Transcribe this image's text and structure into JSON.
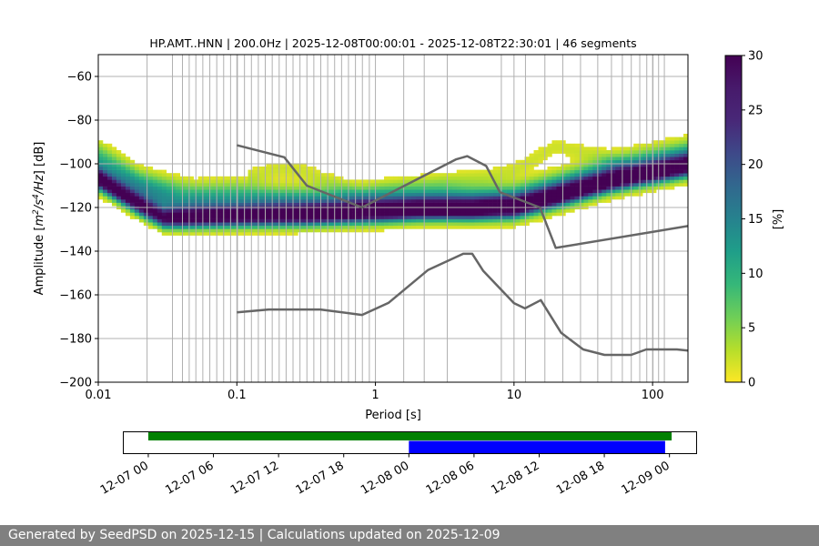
{
  "chart_data": {
    "type": "heatmap",
    "title": "HP.AMT..HNN | 200.0Hz | 2025-12-08T00:00:01 - 2025-12-08T22:30:01 | 46 segments",
    "xlabel": "Period [s]",
    "ylabel_parts": [
      "Amplitude [",
      "m",
      "2",
      "/",
      "s",
      "4",
      "/",
      "Hz",
      "] [dB]"
    ],
    "x_scale": "log",
    "xlim": [
      0.01,
      180
    ],
    "ylim": [
      -200,
      -50
    ],
    "x_ticks": [
      {
        "value": 0.01,
        "label": "0.01"
      },
      {
        "value": 0.1,
        "label": "0.1"
      },
      {
        "value": 1,
        "label": "1"
      },
      {
        "value": 10,
        "label": "10"
      },
      {
        "value": 100,
        "label": "100"
      }
    ],
    "y_ticks": [
      {
        "value": -60,
        "label": "−60"
      },
      {
        "value": -80,
        "label": "−80"
      },
      {
        "value": -100,
        "label": "−100"
      },
      {
        "value": -120,
        "label": "−120"
      },
      {
        "value": -140,
        "label": "−140"
      },
      {
        "value": -160,
        "label": "−160"
      },
      {
        "value": -180,
        "label": "−180"
      },
      {
        "value": -200,
        "label": "−200"
      }
    ],
    "grid_periods": [
      0.0225,
      0.0343,
      0.0405,
      0.0453,
      0.0506,
      0.0568,
      0.0638,
      0.0716,
      0.0803,
      0.0901,
      0.101,
      0.1135,
      0.1274,
      0.1429,
      0.1603,
      0.18,
      0.202,
      0.2267,
      0.2543,
      0.2854,
      0.3203,
      0.3593,
      0.4033,
      0.4524,
      0.5076,
      0.5698,
      0.639,
      0.7175,
      0.8053,
      0.9036,
      1.6,
      2.25,
      3.3,
      8.1,
      12.1,
      16.7,
      22.5,
      30.2,
      40.2,
      50.5,
      60.5,
      70.2,
      80.8,
      90.8,
      100.7,
      110.5,
      121.6
    ],
    "colorbar": {
      "label": "[%]",
      "colormap": "viridis_r",
      "min": 0,
      "max": 30,
      "ticks": [
        {
          "value": 0,
          "label": "0"
        },
        {
          "value": 5,
          "label": "5"
        },
        {
          "value": 10,
          "label": "10"
        },
        {
          "value": 15,
          "label": "15"
        },
        {
          "value": 20,
          "label": "20"
        },
        {
          "value": 25,
          "label": "25"
        },
        {
          "value": 30,
          "label": "30"
        }
      ]
    },
    "psd_modes": [
      {
        "name": "noise-floor",
        "peak_percent": 28,
        "width_db": 3,
        "points": [
          [
            0.01,
            -107
          ],
          [
            0.02,
            -119
          ],
          [
            0.03,
            -125
          ],
          [
            0.1,
            -124
          ],
          [
            0.3,
            -123.5
          ],
          [
            1,
            -122
          ],
          [
            2,
            -121
          ],
          [
            5,
            -121
          ],
          [
            10,
            -120
          ],
          [
            20,
            -115
          ],
          [
            50,
            -108
          ],
          [
            180,
            -101
          ]
        ]
      },
      {
        "name": "main-band",
        "peak_percent": 12,
        "width_db": 5,
        "points": [
          [
            0.01,
            -103
          ],
          [
            0.02,
            -113
          ],
          [
            0.04,
            -120
          ],
          [
            0.1,
            -120
          ],
          [
            0.3,
            -120
          ],
          [
            1,
            -119
          ],
          [
            3,
            -117
          ],
          [
            10,
            -118
          ],
          [
            20,
            -113
          ],
          [
            50,
            -105
          ],
          [
            180,
            -98
          ]
        ]
      },
      {
        "name": "upper-band",
        "peak_percent": 5,
        "width_db": 4,
        "points": [
          [
            0.01,
            -95
          ],
          [
            0.02,
            -108
          ],
          [
            0.05,
            -114
          ],
          [
            0.1,
            -113
          ],
          [
            0.2,
            -116
          ],
          [
            1,
            -117
          ],
          [
            5,
            -118
          ],
          [
            10,
            -115
          ],
          [
            20,
            -110
          ],
          [
            50,
            -103
          ],
          [
            180,
            -96
          ]
        ]
      },
      {
        "name": "hump",
        "peak_percent": 2,
        "width_db": 3,
        "points": [
          [
            0.12,
            -106
          ],
          [
            0.2,
            -102
          ],
          [
            0.3,
            -103
          ],
          [
            0.5,
            -109
          ],
          [
            0.8,
            -116
          ],
          [
            1.1,
            -112
          ],
          [
            3,
            -108
          ],
          [
            6,
            -106
          ],
          [
            10,
            -103
          ],
          [
            20,
            -92
          ],
          [
            40,
            -96
          ],
          [
            70,
            -103
          ]
        ]
      }
    ],
    "series": [
      {
        "name": "upper-model-curve",
        "color": "#666666",
        "points": [
          [
            0.1,
            -91.5
          ],
          [
            0.22,
            -97
          ],
          [
            0.32,
            -110
          ],
          [
            0.8,
            -120
          ],
          [
            3.8,
            -98
          ],
          [
            4.6,
            -96.5
          ],
          [
            6.3,
            -101
          ],
          [
            7.9,
            -113
          ],
          [
            15.4,
            -120
          ],
          [
            20,
            -138.5
          ],
          [
            180,
            -128.5
          ]
        ]
      },
      {
        "name": "lower-model-curve",
        "color": "#666666",
        "points": [
          [
            0.1,
            -168
          ],
          [
            0.17,
            -166.7
          ],
          [
            0.4,
            -166.7
          ],
          [
            0.8,
            -169.2
          ],
          [
            1.24,
            -163.7
          ],
          [
            2.4,
            -148.6
          ],
          [
            4.3,
            -141.2
          ],
          [
            5.0,
            -141.2
          ],
          [
            6.0,
            -149.1
          ],
          [
            10.0,
            -163.8
          ],
          [
            12.0,
            -166.2
          ],
          [
            15.6,
            -162.4
          ],
          [
            21.9,
            -177.4
          ],
          [
            31.6,
            -185
          ],
          [
            45.0,
            -187.5
          ],
          [
            70.0,
            -187.5
          ],
          [
            90.0,
            -185
          ],
          [
            150.0,
            -185
          ],
          [
            180,
            -185.5
          ]
        ]
      }
    ]
  },
  "timeline": {
    "start": "12-07 00",
    "tick_labels": [
      "12-07 00",
      "12-07 06",
      "12-07 12",
      "12-07 18",
      "12-08 00",
      "12-08 06",
      "12-08 12",
      "12-08 18",
      "12-09 00"
    ],
    "range_hours": [
      -2.3,
      50.5
    ],
    "bars": [
      {
        "name": "available-data",
        "color": "#008000",
        "start_hours": 0,
        "end_hours": 48.2,
        "row": "top"
      },
      {
        "name": "selected-data",
        "color": "#0000ff",
        "start_hours": 24,
        "end_hours": 47.6,
        "row": "bottom"
      }
    ]
  },
  "footer": {
    "text": "Generated by SeedPSD on 2025-12-15 | Calculations updated on 2025-12-09"
  }
}
